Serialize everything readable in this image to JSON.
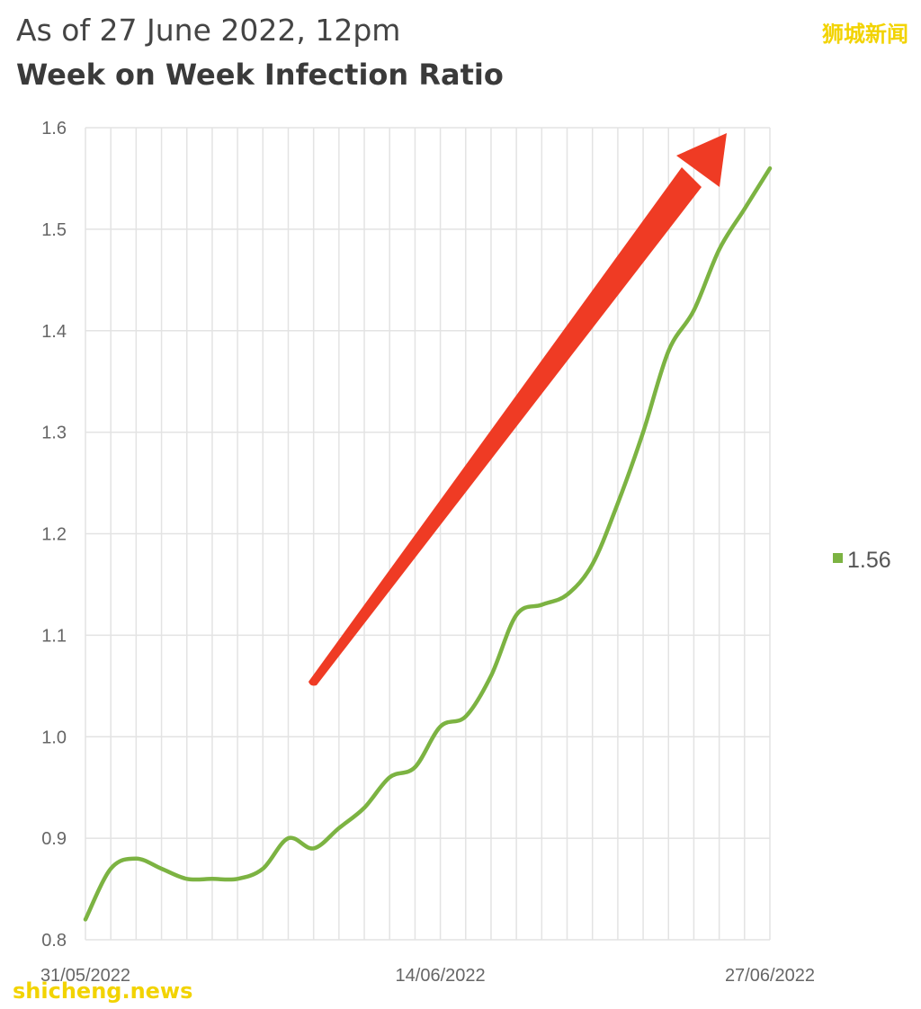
{
  "header": {
    "subtitle": "As of 27 June 2022, 12pm",
    "title": "Week on Week Infection Ratio"
  },
  "watermarks": {
    "top_right": "狮城新闻",
    "bottom_left": "shicheng.news"
  },
  "colors": {
    "series": "#7cb342",
    "arrow": "#ef3b24",
    "grid": "#e3e3e3"
  },
  "chart_data": {
    "type": "line",
    "title": "Week on Week Infection Ratio",
    "subtitle": "As of 27 June 2022, 12pm",
    "xlabel": "",
    "ylabel": "",
    "ylim": [
      0.8,
      1.6
    ],
    "yticks": [
      "0.8",
      "0.9",
      "1.0",
      "1.1",
      "1.2",
      "1.3",
      "1.4",
      "1.5",
      "1.6"
    ],
    "xtick_labels": [
      "31/05/2022",
      "14/06/2022",
      "27/06/2022"
    ],
    "grid": true,
    "legend_position": "right",
    "x": [
      "31/05/2022",
      "01/06/2022",
      "02/06/2022",
      "03/06/2022",
      "04/06/2022",
      "05/06/2022",
      "06/06/2022",
      "07/06/2022",
      "08/06/2022",
      "09/06/2022",
      "10/06/2022",
      "11/06/2022",
      "12/06/2022",
      "13/06/2022",
      "14/06/2022",
      "15/06/2022",
      "16/06/2022",
      "17/06/2022",
      "18/06/2022",
      "19/06/2022",
      "20/06/2022",
      "21/06/2022",
      "22/06/2022",
      "23/06/2022",
      "24/06/2022",
      "25/06/2022",
      "26/06/2022",
      "27/06/2022"
    ],
    "series": [
      {
        "name": "1.56",
        "values": [
          0.82,
          0.87,
          0.88,
          0.87,
          0.86,
          0.86,
          0.86,
          0.87,
          0.9,
          0.89,
          0.91,
          0.93,
          0.96,
          0.97,
          1.01,
          1.02,
          1.06,
          1.12,
          1.13,
          1.14,
          1.17,
          1.23,
          1.3,
          1.38,
          1.42,
          1.48,
          1.52,
          1.56
        ]
      }
    ],
    "annotation": "red arrow pointing up-right"
  }
}
